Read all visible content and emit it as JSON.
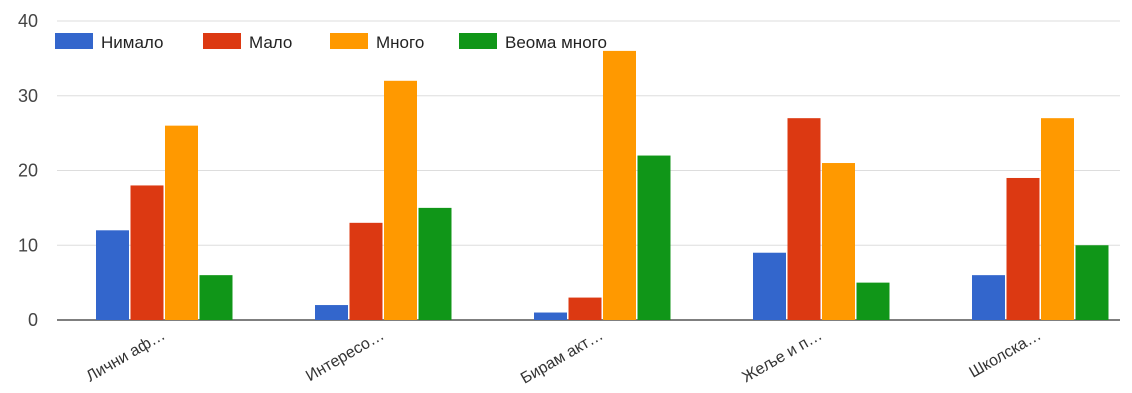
{
  "chart_data": {
    "type": "bar",
    "title": "",
    "xlabel": "",
    "ylabel": "",
    "ylim": [
      0,
      40
    ],
    "y_ticks": [
      0,
      10,
      20,
      30,
      40
    ],
    "grid": true,
    "legend_position": "top-left",
    "categories": [
      "Лични аф…",
      "Интересо…",
      "Бирам акт…",
      "Жеље и п…",
      "Школска…"
    ],
    "series": [
      {
        "name": "Нимало",
        "color": "#3366cc",
        "values": [
          12,
          2,
          1,
          9,
          6
        ]
      },
      {
        "name": "Мало",
        "color": "#dc3912",
        "values": [
          18,
          13,
          3,
          27,
          19
        ]
      },
      {
        "name": "Много",
        "color": "#ff9900",
        "values": [
          26,
          32,
          36,
          21,
          27
        ]
      },
      {
        "name": "Веома много",
        "color": "#109618",
        "values": [
          6,
          15,
          22,
          5,
          10
        ]
      }
    ]
  }
}
